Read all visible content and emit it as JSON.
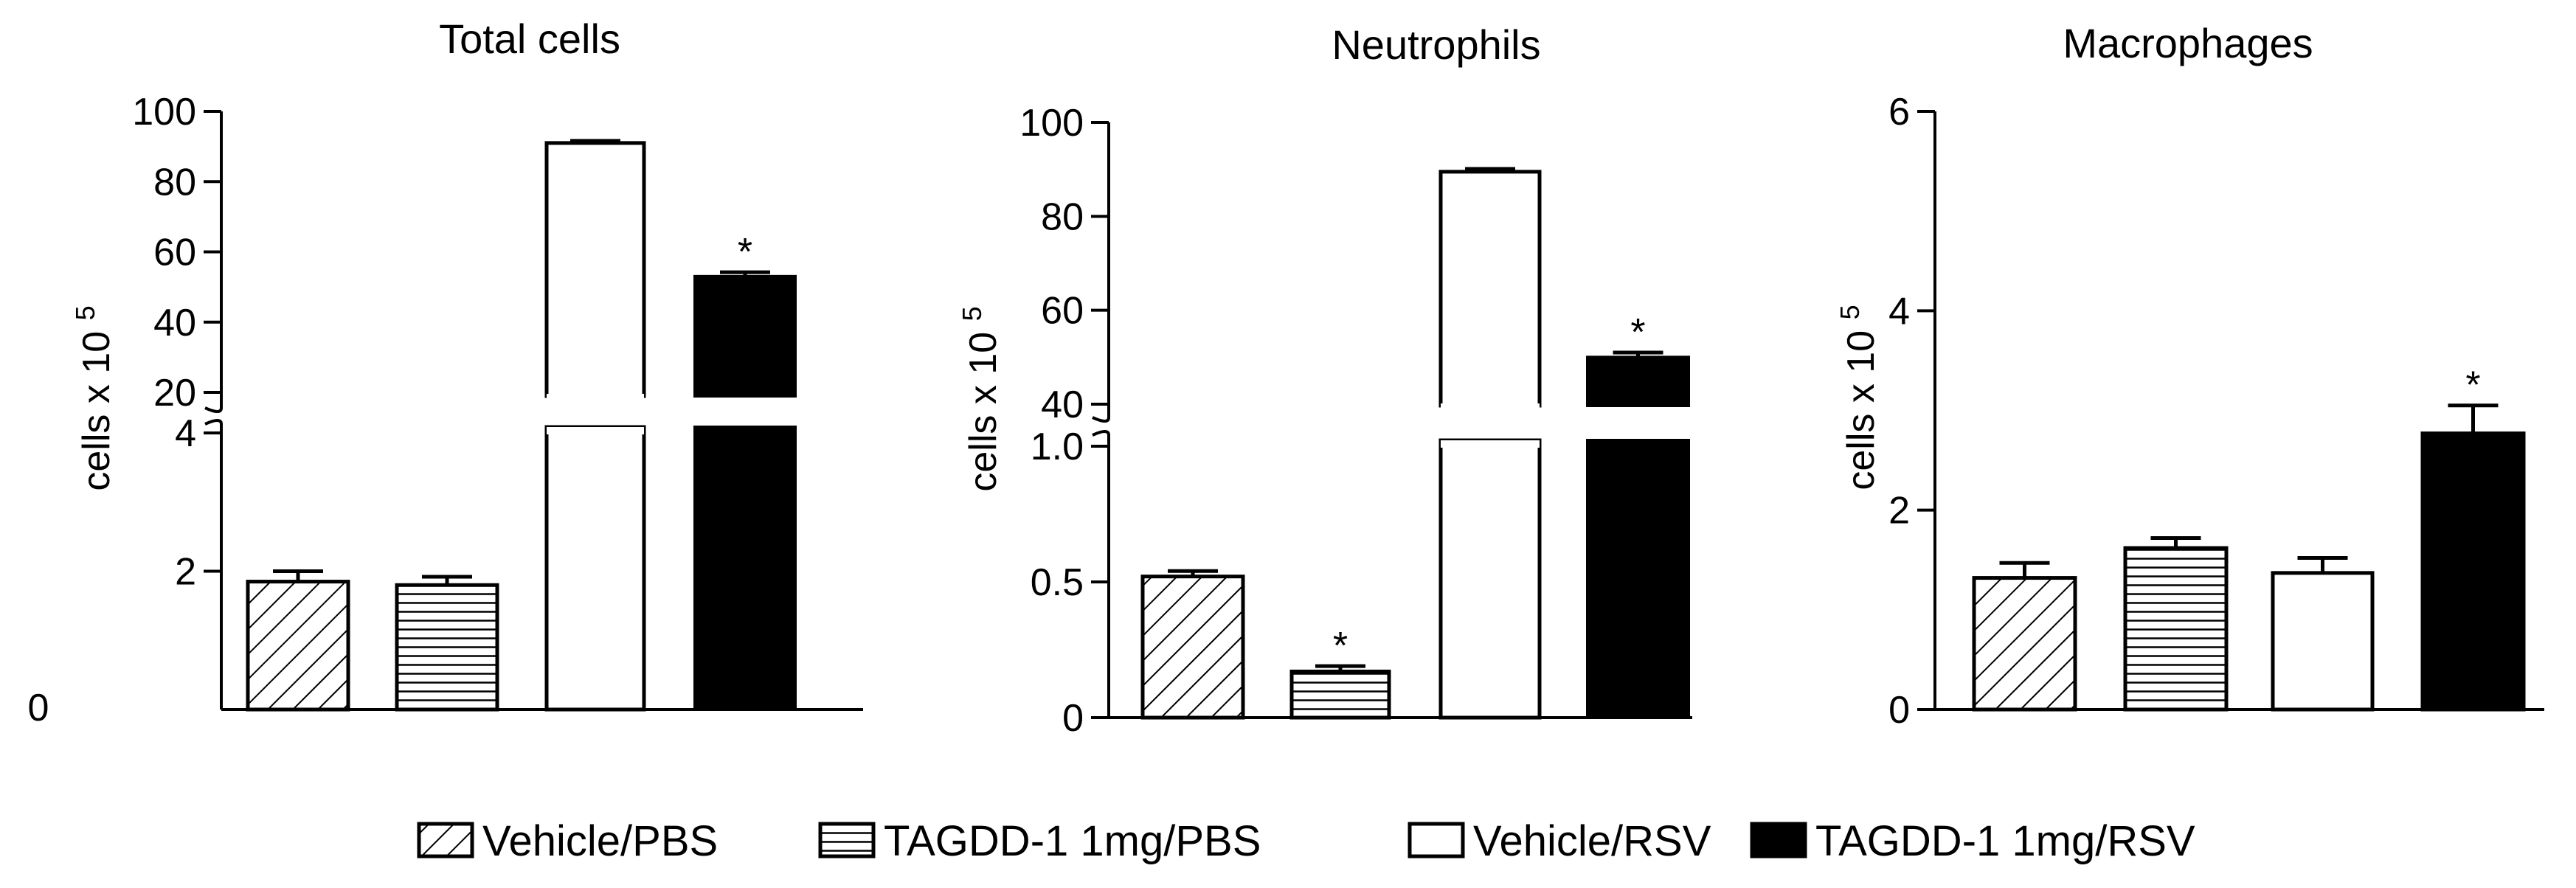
{
  "chart_data": [
    {
      "type": "bar",
      "title": "Total cells",
      "ylabel": "cells x 10",
      "ylabel_exponent": "5",
      "axis_break": true,
      "lower_range": [
        0,
        4
      ],
      "upper_range": [
        20,
        100
      ],
      "lower_ticks": [
        "0",
        "2",
        "4"
      ],
      "upper_ticks": [
        "20",
        "40",
        "60",
        "80",
        "100"
      ],
      "categories": [
        "Vehicle/PBS",
        "TAGDD-1 1mg/PBS",
        "Vehicle/RSV",
        "TAGDD-1 1mg/RSV"
      ],
      "values": [
        1.85,
        1.8,
        91,
        53
      ],
      "errors": [
        0.15,
        0.12,
        0.6,
        1.2
      ],
      "significance": [
        "",
        "",
        "",
        "*"
      ]
    },
    {
      "type": "bar",
      "title": "Neutrophils",
      "ylabel": "cells x 10",
      "ylabel_exponent": "5",
      "axis_break": true,
      "lower_range": [
        0,
        1.0
      ],
      "upper_range": [
        40,
        100
      ],
      "lower_ticks": [
        "0",
        "0.5",
        "1.0"
      ],
      "upper_ticks": [
        "40",
        "60",
        "80",
        "100"
      ],
      "categories": [
        "Vehicle/PBS",
        "TAGDD-1 1mg/PBS",
        "Vehicle/RSV",
        "TAGDD-1 1mg/RSV"
      ],
      "values": [
        0.52,
        0.17,
        89.5,
        50
      ],
      "errors": [
        0.02,
        0.02,
        0.6,
        1.0
      ],
      "significance": [
        "",
        "*",
        "",
        "*"
      ]
    },
    {
      "type": "bar",
      "title": "Macrophages",
      "ylabel": "cells x 10",
      "ylabel_exponent": "5",
      "axis_break": false,
      "ylim": [
        0,
        6
      ],
      "ticks": [
        "0",
        "2",
        "4",
        "6"
      ],
      "categories": [
        "Vehicle/PBS",
        "TAGDD-1 1mg/PBS",
        "Vehicle/RSV",
        "TAGDD-1 1mg/RSV"
      ],
      "values": [
        1.32,
        1.62,
        1.37,
        2.77
      ],
      "errors": [
        0.15,
        0.1,
        0.15,
        0.28
      ],
      "significance": [
        "",
        "",
        "",
        "*"
      ]
    }
  ],
  "legend": {
    "placement": "bottom",
    "items": [
      {
        "label": "Vehicle/PBS",
        "fill": "diagonal"
      },
      {
        "label": "TAGDD-1 1mg/PBS",
        "fill": "horizontal"
      },
      {
        "label": "Vehicle/RSV",
        "fill": "white"
      },
      {
        "label": "TAGDD-1 1mg/RSV",
        "fill": "black"
      }
    ]
  },
  "colors": {
    "ink": "#000000",
    "background": "#ffffff"
  }
}
